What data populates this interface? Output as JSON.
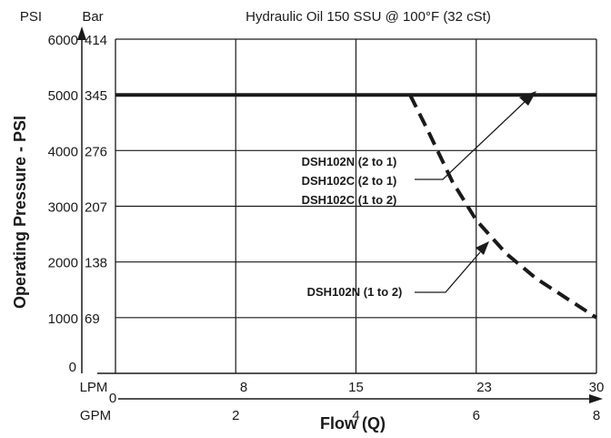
{
  "chart_data": {
    "type": "line",
    "title": "Hydraulic Oil 150 SSU @ 100°F (32 cSt)",
    "ylabel": "Operating Pressure - PSI",
    "xlabel": "Flow (Q)",
    "y_unit_primary": "PSI",
    "y_unit_secondary": "Bar",
    "x_unit_primary": "LPM",
    "x_unit_secondary": "GPM",
    "xlim": [
      0,
      8
    ],
    "ylim": [
      0,
      6000
    ],
    "grid": true,
    "y_ticks_psi": [
      "0",
      "1000",
      "2000",
      "3000",
      "4000",
      "5000",
      "6000"
    ],
    "y_ticks_bar": [
      "69",
      "138",
      "207",
      "276",
      "345",
      "414"
    ],
    "x_ticks_lpm": [
      "8",
      "15",
      "23",
      "30"
    ],
    "x_ticks_gpm": [
      "0",
      "2",
      "4",
      "6",
      "8"
    ],
    "series": [
      {
        "name": "DSH102N (2 to 1), DSH102C (2 to 1), DSH102C (1 to 2)",
        "style": "solid",
        "x": [
          0,
          8
        ],
        "y": [
          5000,
          5000
        ]
      },
      {
        "name": "DSH102N (1 to 2)",
        "style": "dashed",
        "x": [
          4.9,
          5.2,
          5.6,
          6.0,
          6.5,
          7.0,
          7.5,
          8.0
        ],
        "y": [
          5000,
          4350,
          3450,
          2750,
          2150,
          1700,
          1350,
          1000
        ]
      }
    ],
    "annotations": [
      {
        "lines": [
          "DSH102N (2 to 1)",
          "DSH102C (2 to 1)",
          "DSH102C (1 to 2)"
        ],
        "points_to": "solid line at 5000 PSI"
      },
      {
        "lines": [
          "DSH102N (1 to 2)"
        ],
        "points_to": "dashed curve"
      }
    ],
    "colors": {
      "line": "#1a1a1a",
      "grid": "#1a1a1a"
    }
  }
}
